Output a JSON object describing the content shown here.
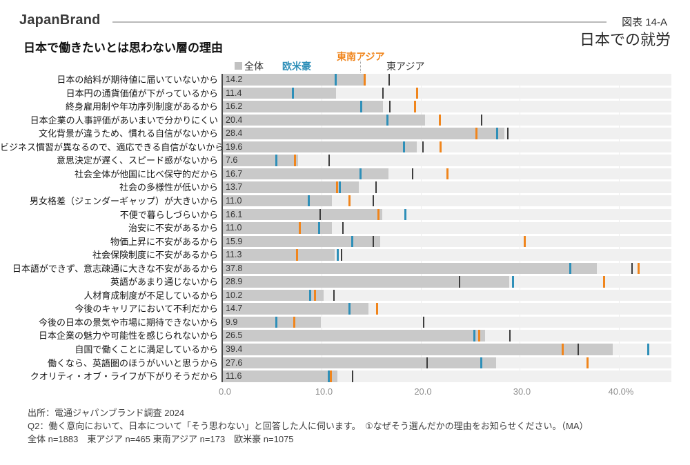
{
  "header": {
    "brand": "JapanBrand",
    "figure_label": "図表 14-A",
    "figure_title": "日本での就労"
  },
  "title": "日本で働きたいとは思わない層の理由",
  "legend": {
    "total": "全体",
    "west": "欧米豪",
    "southeast_asia": "東南アジア",
    "east_asia": "東アジア"
  },
  "colors": {
    "total_bar": "#c9c9c9",
    "row_band": "#f0f0f0",
    "west": "#2e8fb8",
    "southeast_asia": "#f0851c",
    "east_asia": "#3c3c3c"
  },
  "chart_data": {
    "type": "bar",
    "orientation": "horizontal",
    "unit": "%",
    "xlim": [
      0,
      45.3
    ],
    "grid": true,
    "legend_position": "top",
    "x_ticks": [
      {
        "value": 0,
        "label": "0.0"
      },
      {
        "value": 10,
        "label": "10.0"
      },
      {
        "value": 20,
        "label": "20.0"
      },
      {
        "value": 30,
        "label": "30.0"
      },
      {
        "value": 40,
        "label": "40.0%"
      }
    ],
    "categories": [
      "日本の給料が期待値に届いていないから",
      "日本円の通貨価値が下がっているから",
      "終身雇用制や年功序列制度があるから",
      "日本企業の人事評価があいまいで分かりにくい",
      "文化背景が違うため、慣れる自信がないから",
      "ビジネス慣習が異なるので、適応できる自信がないから",
      "意思決定が遅く、スピード感がないから",
      "社会全体が他国に比べ保守的だから",
      "社会の多様性が低いから",
      "男女格差（ジェンダーギャップ）が大きいから",
      "不便で暮らしづらいから",
      "治安に不安があるから",
      "物価上昇に不安があるから",
      "社会保険制度に不安があるから",
      "日本語ができず、意志疎通に大きな不安があるから",
      "英語があまり通じないから",
      "人材育成制度が不足しているから",
      "今後のキャリアにおいて不利だから",
      "今後の日本の景気や市場に期待できないから",
      "日本企業の魅力や可能性を感じられないから",
      "自国で働くことに満足しているから",
      "働くなら、英語圏のほうがいいと思うから",
      "クオリティ・オブ・ライフが下がりそうだから"
    ],
    "series": [
      {
        "name": "全体",
        "mark": "bar",
        "show_value_labels": true,
        "values": [
          14.2,
          11.4,
          16.2,
          20.4,
          28.4,
          19.6,
          7.6,
          16.7,
          13.7,
          11.0,
          16.1,
          11.0,
          15.9,
          11.3,
          37.8,
          28.9,
          10.2,
          14.7,
          9.9,
          26.5,
          39.4,
          27.6,
          11.6
        ]
      },
      {
        "name": "欧米豪",
        "mark": "tick",
        "values": [
          11.4,
          7.1,
          14.0,
          16.6,
          27.7,
          18.3,
          5.4,
          13.9,
          11.8,
          8.7,
          18.4,
          9.7,
          13.1,
          11.6,
          35.1,
          29.3,
          8.8,
          12.8,
          5.4,
          25.4,
          43.0,
          26.1,
          10.7
        ]
      },
      {
        "name": "東南アジア",
        "mark": "tick",
        "values": [
          14.3,
          19.6,
          19.4,
          21.9,
          25.6,
          22.0,
          7.3,
          22.7,
          11.5,
          12.8,
          15.7,
          7.8,
          30.5,
          7.5,
          42.0,
          38.5,
          9.3,
          15.6,
          7.2,
          25.9,
          34.3,
          36.8,
          10.9
        ]
      },
      {
        "name": "東アジア",
        "mark": "tick",
        "values": [
          16.8,
          16.2,
          16.9,
          26.1,
          28.8,
          20.2,
          10.7,
          19.2,
          15.5,
          15.2,
          9.8,
          12.1,
          15.2,
          12.0,
          41.3,
          23.9,
          11.2,
          null,
          20.3,
          29.0,
          35.9,
          20.6,
          13.1
        ]
      }
    ]
  },
  "footer": {
    "source": "出所：電通ジャパンブランド調査 2024",
    "question": "Q2：働く意向において、日本について「そう思わない」と回答した人に伺います。　①なぜそう選んだかの理由をお知らせください。（MA）",
    "sample": "全体 n=1883　東アジア n=465 東南アジア n=173　欧米豪 n=1075"
  }
}
